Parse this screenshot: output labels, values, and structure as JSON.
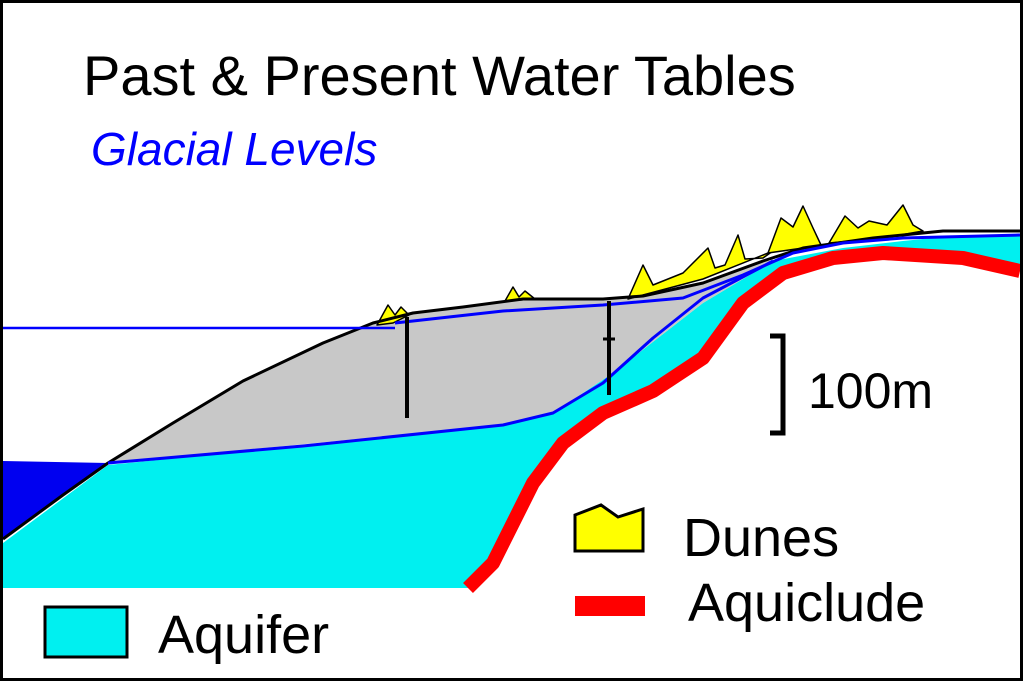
{
  "title": "Past & Present Water Tables",
  "subtitle": "Glacial Levels",
  "scale_bar": {
    "label": "100m"
  },
  "legend": {
    "dunes": "Dunes",
    "aquiclude": "Aquiclude",
    "aquifer": "Aquifer"
  },
  "colors": {
    "aquifer": "#00f0f0",
    "dunes": "#ffff00",
    "aquiclude": "#ff0000",
    "sediment": "#c8c8c8",
    "glacial_water": "#0000ff",
    "sea": "#0000f0",
    "outline": "#000000"
  }
}
